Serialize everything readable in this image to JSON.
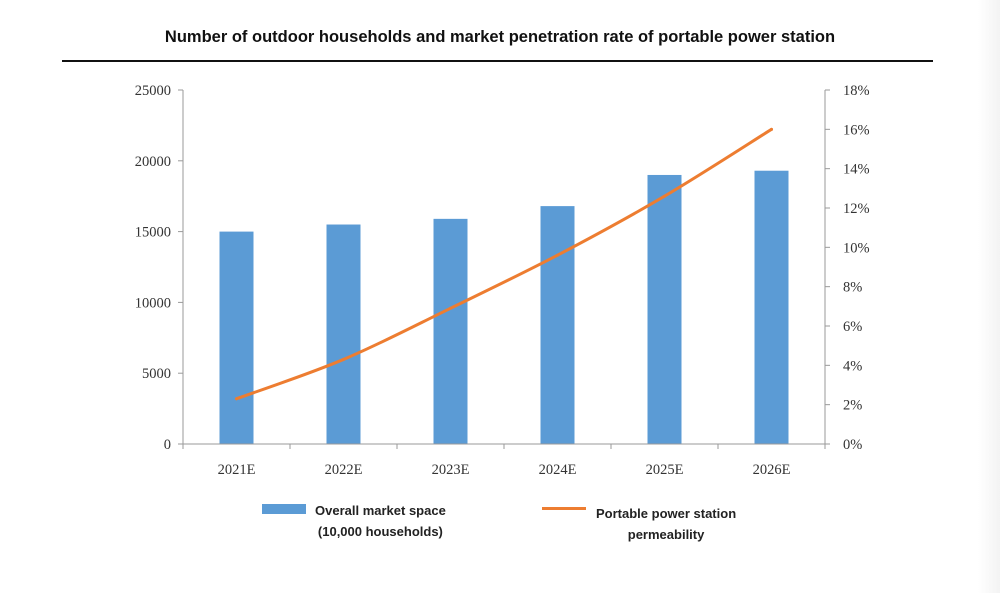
{
  "chart_data": {
    "type": "bar",
    "title": "Number of outdoor households and market penetration rate of portable power station",
    "categories": [
      "2021E",
      "2022E",
      "2023E",
      "2024E",
      "2025E",
      "2026E"
    ],
    "series": [
      {
        "name": "Overall market space (10,000 households)",
        "type": "bar",
        "axis": "left",
        "color": "#5b9bd5",
        "values": [
          15000,
          15500,
          15900,
          16800,
          19000,
          19300
        ]
      },
      {
        "name": "Portable power station permeability",
        "type": "line",
        "axis": "right",
        "color": "#ed7d31",
        "values": [
          2.3,
          4.3,
          6.9,
          9.6,
          12.6,
          16.0
        ]
      }
    ],
    "y_left": {
      "ylim": [
        0,
        25000
      ],
      "ticks": [
        0,
        5000,
        10000,
        15000,
        20000,
        25000
      ]
    },
    "y_right": {
      "ylim": [
        0,
        18
      ],
      "ticks": [
        "0%",
        "2%",
        "4%",
        "6%",
        "8%",
        "10%",
        "12%",
        "14%",
        "16%",
        "18%"
      ]
    },
    "grid": false,
    "legend_position": "bottom"
  },
  "legend": {
    "bar_label_line1": "Overall market space",
    "bar_label_line2": "(10,000 households)",
    "line_label_line1": "Portable power station",
    "line_label_line2": "permeability"
  }
}
